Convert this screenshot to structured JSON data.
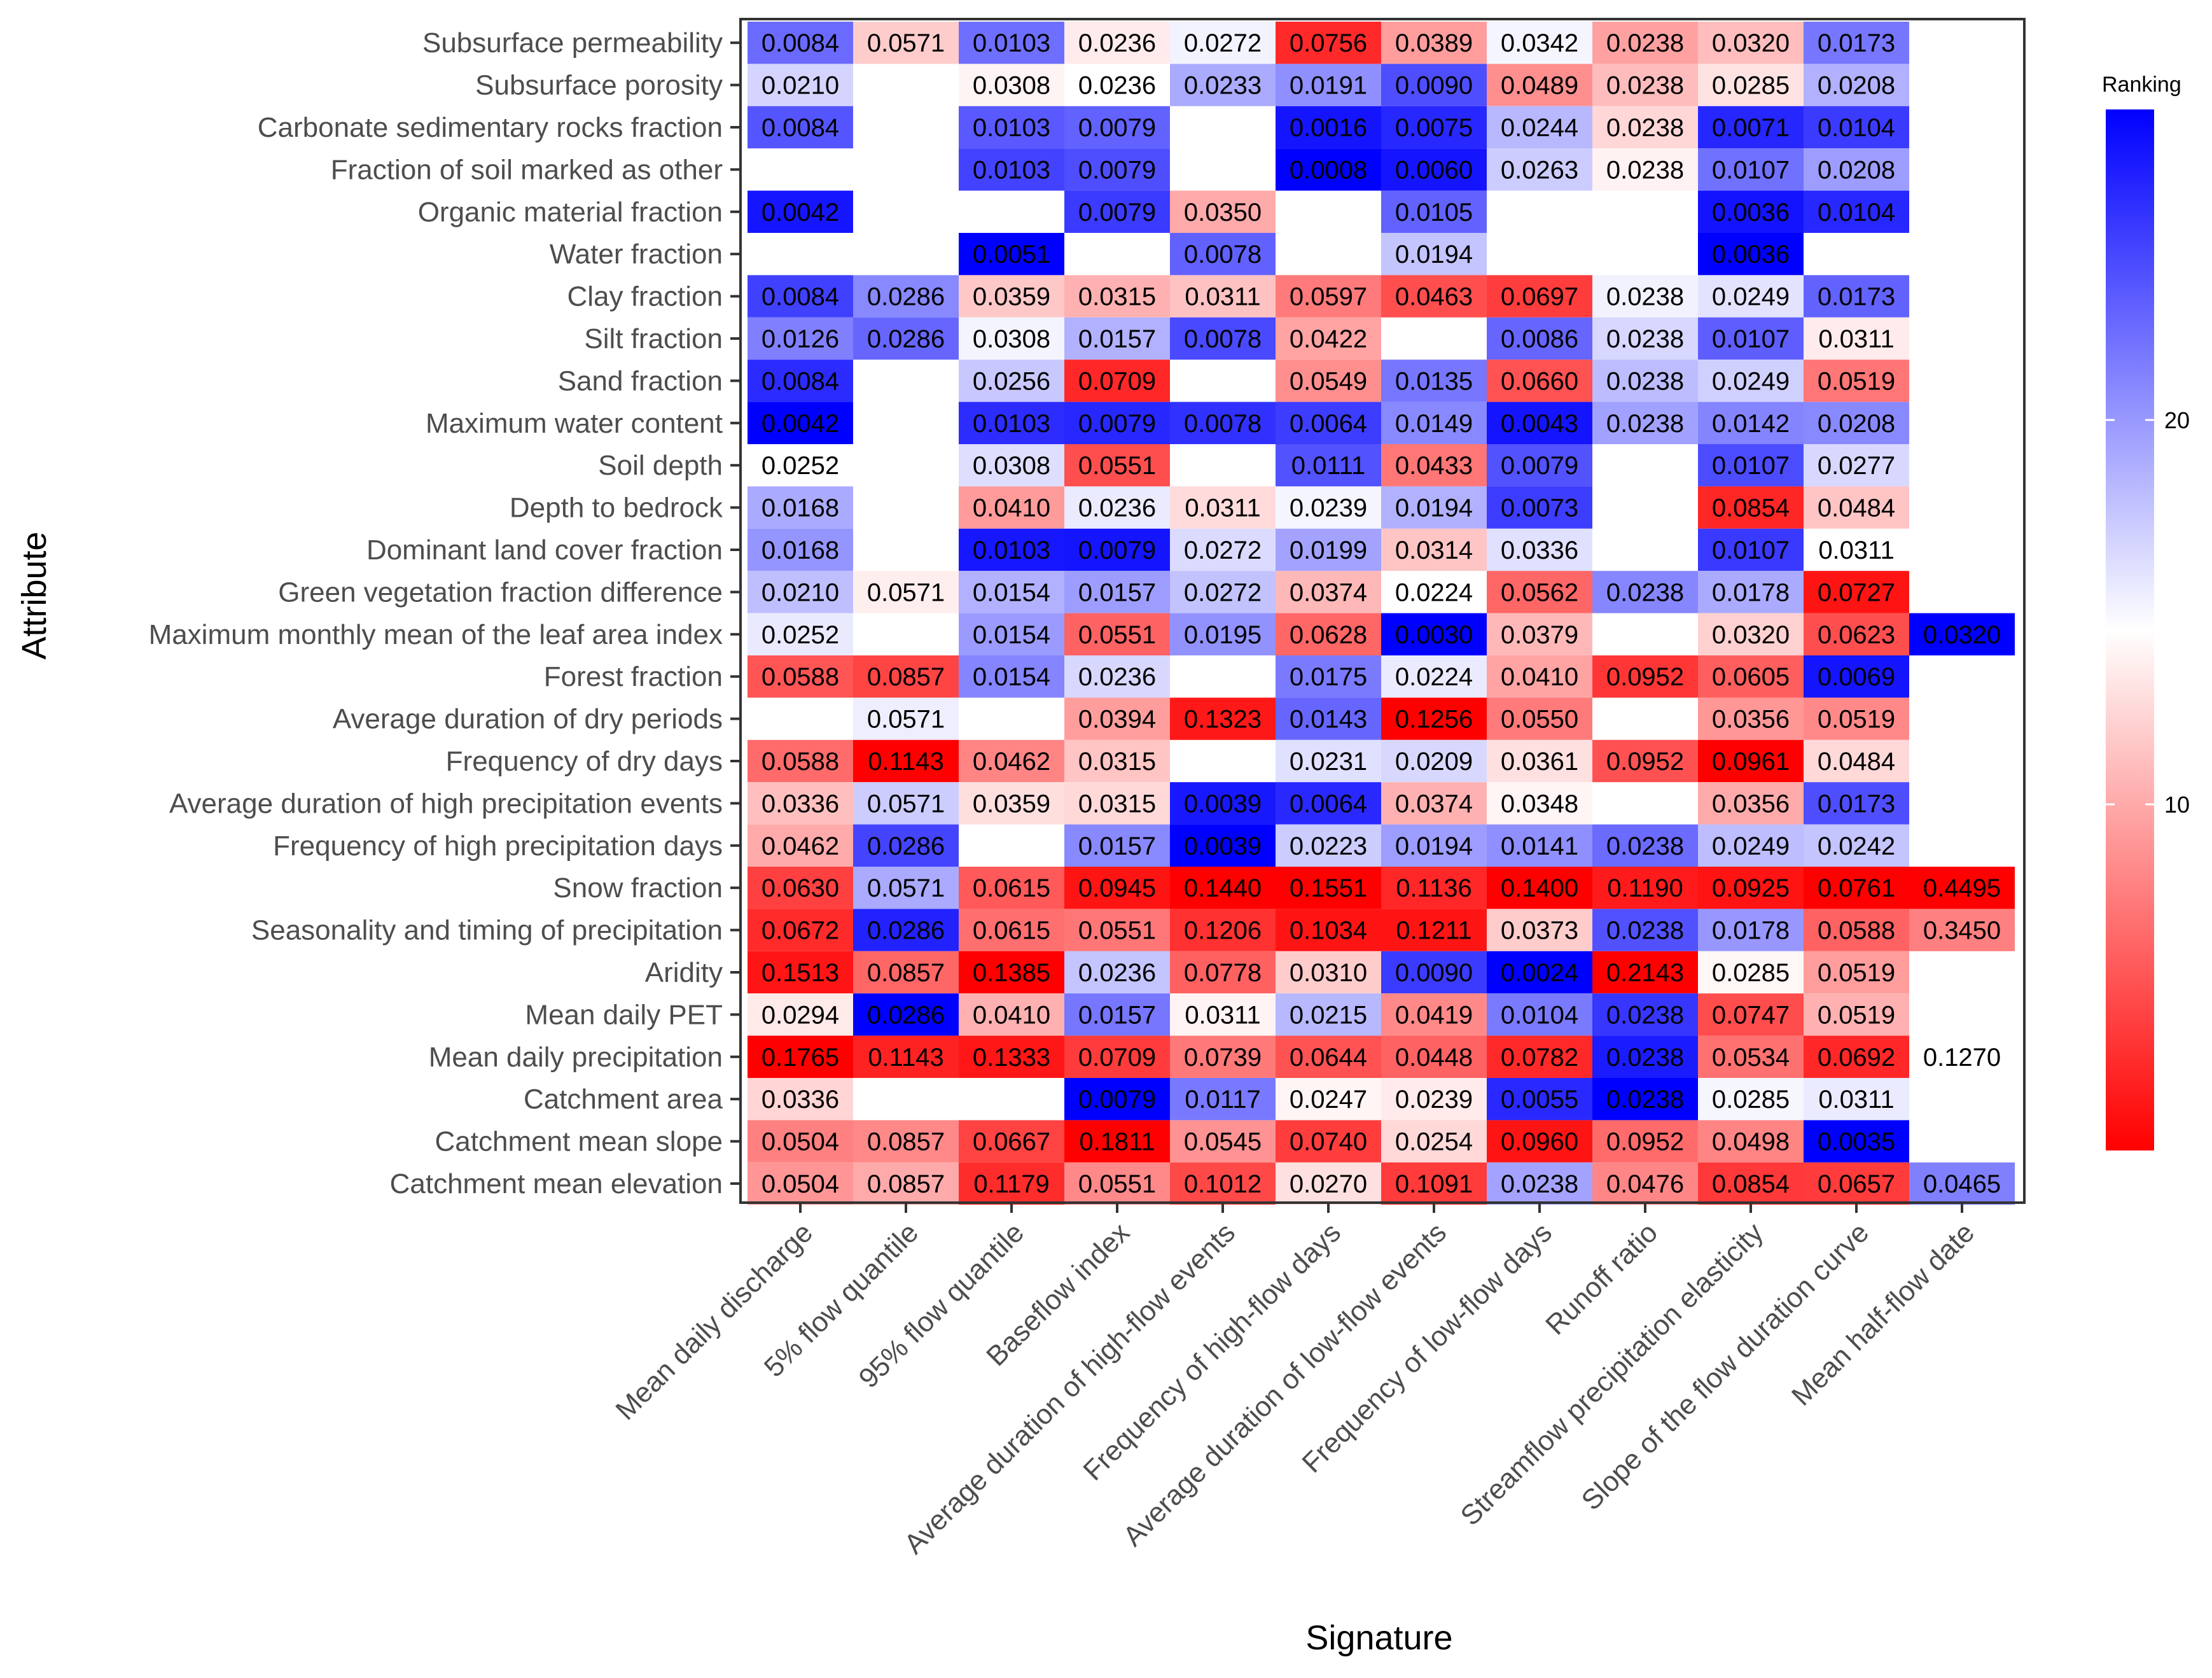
{
  "chart_data": {
    "type": "heatmap",
    "title": "",
    "xlabel": "Signature",
    "ylabel": "Attribute",
    "legend": {
      "title": "Ranking",
      "position": "right",
      "breaks": [
        "20",
        "10"
      ],
      "scale_note": "colour encodes per-signature rank of each attribute: red = top ranked, white = mid, blue = low",
      "colors": {
        "low_rank": "#FF0000",
        "mid_rank": "#FFFFFF",
        "high_rank": "#0000FF"
      }
    },
    "columns": [
      "Mean daily discharge",
      "5% flow quantile",
      "95% flow quantile",
      "Baseflow index",
      "Average duration of high-flow events",
      "Frequency of high-flow days",
      "Average duration of low-flow events",
      "Frequency of low-flow days",
      "Runoff ratio",
      "Streamflow precipitation elasticity",
      "Slope of the flow duration curve",
      "Mean half-flow date"
    ],
    "rows": [
      "Subsurface permeability",
      "Subsurface porosity",
      "Carbonate sedimentary rocks fraction",
      "Fraction of soil marked as other",
      "Organic material fraction",
      "Water fraction",
      "Clay fraction",
      "Silt fraction",
      "Sand fraction",
      "Maximum water content",
      "Soil depth",
      "Depth to bedrock",
      "Dominant land cover fraction",
      "Green vegetation fraction difference",
      "Maximum monthly mean of the leaf area index",
      "Forest fraction",
      "Average duration of dry periods",
      "Frequency of dry days",
      "Average duration of high precipitation events",
      "Frequency of high precipitation days",
      "Snow fraction",
      "Seasonality and timing of precipitation",
      "Aridity",
      "Mean daily PET",
      "Mean daily precipitation",
      "Catchment area",
      "Catchment mean slope",
      "Catchment mean elevation"
    ],
    "cells": [
      [
        "0.0084",
        "0.0571",
        "0.0103",
        "0.0236",
        "0.0272",
        "0.0756",
        "0.0389",
        "0.0342",
        "0.0238",
        "0.0320",
        "0.0173",
        null
      ],
      [
        "0.0210",
        null,
        "0.0308",
        "0.0236",
        "0.0233",
        "0.0191",
        "0.0090",
        "0.0489",
        "0.0238",
        "0.0285",
        "0.0208",
        null
      ],
      [
        "0.0084",
        null,
        "0.0103",
        "0.0079",
        null,
        "0.0016",
        "0.0075",
        "0.0244",
        "0.0238",
        "0.0071",
        "0.0104",
        null
      ],
      [
        null,
        null,
        "0.0103",
        "0.0079",
        null,
        "0.0008",
        "0.0060",
        "0.0263",
        "0.0238",
        "0.0107",
        "0.0208",
        null
      ],
      [
        "0.0042",
        null,
        null,
        "0.0079",
        "0.0350",
        null,
        "0.0105",
        null,
        null,
        "0.0036",
        "0.0104",
        null
      ],
      [
        null,
        null,
        "0.0051",
        null,
        "0.0078",
        null,
        "0.0194",
        null,
        null,
        "0.0036",
        null,
        null
      ],
      [
        "0.0084",
        "0.0286",
        "0.0359",
        "0.0315",
        "0.0311",
        "0.0597",
        "0.0463",
        "0.0697",
        "0.0238",
        "0.0249",
        "0.0173",
        null
      ],
      [
        "0.0126",
        "0.0286",
        "0.0308",
        "0.0157",
        "0.0078",
        "0.0422",
        null,
        "0.0086",
        "0.0238",
        "0.0107",
        "0.0311",
        null
      ],
      [
        "0.0084",
        null,
        "0.0256",
        "0.0709",
        null,
        "0.0549",
        "0.0135",
        "0.0660",
        "0.0238",
        "0.0249",
        "0.0519",
        null
      ],
      [
        "0.0042",
        null,
        "0.0103",
        "0.0079",
        "0.0078",
        "0.0064",
        "0.0149",
        "0.0043",
        "0.0238",
        "0.0142",
        "0.0208",
        null
      ],
      [
        "0.0252",
        null,
        "0.0308",
        "0.0551",
        null,
        "0.0111",
        "0.0433",
        "0.0079",
        null,
        "0.0107",
        "0.0277",
        null
      ],
      [
        "0.0168",
        null,
        "0.0410",
        "0.0236",
        "0.0311",
        "0.0239",
        "0.0194",
        "0.0073",
        null,
        "0.0854",
        "0.0484",
        null
      ],
      [
        "0.0168",
        null,
        "0.0103",
        "0.0079",
        "0.0272",
        "0.0199",
        "0.0314",
        "0.0336",
        null,
        "0.0107",
        "0.0311",
        null
      ],
      [
        "0.0210",
        "0.0571",
        "0.0154",
        "0.0157",
        "0.0272",
        "0.0374",
        "0.0224",
        "0.0562",
        "0.0238",
        "0.0178",
        "0.0727",
        null
      ],
      [
        "0.0252",
        null,
        "0.0154",
        "0.0551",
        "0.0195",
        "0.0628",
        "0.0030",
        "0.0379",
        null,
        "0.0320",
        "0.0623",
        "0.0320"
      ],
      [
        "0.0588",
        "0.0857",
        "0.0154",
        "0.0236",
        null,
        "0.0175",
        "0.0224",
        "0.0410",
        "0.0952",
        "0.0605",
        "0.0069",
        null
      ],
      [
        null,
        "0.0571",
        null,
        "0.0394",
        "0.1323",
        "0.0143",
        "0.1256",
        "0.0550",
        null,
        "0.0356",
        "0.0519",
        null
      ],
      [
        "0.0588",
        "0.1143",
        "0.0462",
        "0.0315",
        null,
        "0.0231",
        "0.0209",
        "0.0361",
        "0.0952",
        "0.0961",
        "0.0484",
        null
      ],
      [
        "0.0336",
        "0.0571",
        "0.0359",
        "0.0315",
        "0.0039",
        "0.0064",
        "0.0374",
        "0.0348",
        null,
        "0.0356",
        "0.0173",
        null
      ],
      [
        "0.0462",
        "0.0286",
        null,
        "0.0157",
        "0.0039",
        "0.0223",
        "0.0194",
        "0.0141",
        "0.0238",
        "0.0249",
        "0.0242",
        null
      ],
      [
        "0.0630",
        "0.0571",
        "0.0615",
        "0.0945",
        "0.1440",
        "0.1551",
        "0.1136",
        "0.1400",
        "0.1190",
        "0.0925",
        "0.0761",
        "0.4495"
      ],
      [
        "0.0672",
        "0.0286",
        "0.0615",
        "0.0551",
        "0.1206",
        "0.1034",
        "0.1211",
        "0.0373",
        "0.0238",
        "0.0178",
        "0.0588",
        "0.3450"
      ],
      [
        "0.1513",
        "0.0857",
        "0.1385",
        "0.0236",
        "0.0778",
        "0.0310",
        "0.0090",
        "0.0024",
        "0.2143",
        "0.0285",
        "0.0519",
        null
      ],
      [
        "0.0294",
        "0.0286",
        "0.0410",
        "0.0157",
        "0.0311",
        "0.0215",
        "0.0419",
        "0.0104",
        "0.0238",
        "0.0747",
        "0.0519",
        null
      ],
      [
        "0.1765",
        "0.1143",
        "0.1333",
        "0.0709",
        "0.0739",
        "0.0644",
        "0.0448",
        "0.0782",
        "0.0238",
        "0.0534",
        "0.0692",
        "0.1270"
      ],
      [
        "0.0336",
        null,
        null,
        "0.0079",
        "0.0117",
        "0.0247",
        "0.0239",
        "0.0055",
        "0.0238",
        "0.0285",
        "0.0311",
        null
      ],
      [
        "0.0504",
        "0.0857",
        "0.0667",
        "0.1811",
        "0.0545",
        "0.0740",
        "0.0254",
        "0.0960",
        "0.0952",
        "0.0498",
        "0.0035",
        null
      ],
      [
        "0.0504",
        "0.0857",
        "0.1179",
        "0.0551",
        "0.1012",
        "0.0270",
        "0.1091",
        "0.0238",
        "0.0476",
        "0.0854",
        "0.0657",
        "0.0465"
      ]
    ]
  }
}
